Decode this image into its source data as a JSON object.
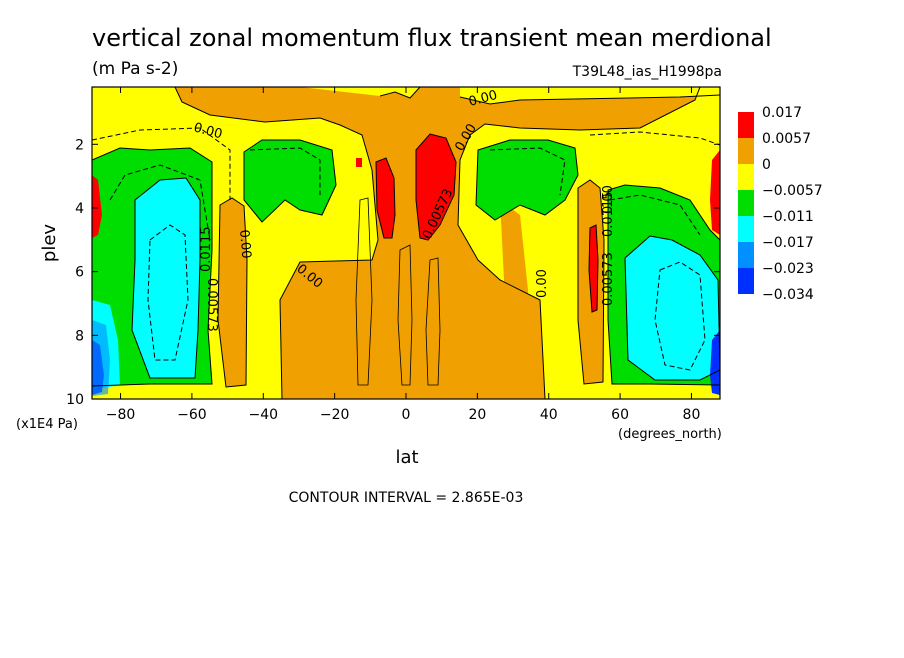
{
  "chart_data": {
    "type": "heatmap",
    "title": "vertical zonal momentum flux transient mean merdional",
    "units": "(m Pa s-2)",
    "dataset": "T39L48_ias_H1998pa",
    "xlabel": "lat",
    "xunits": "(degrees_north)",
    "ylabel": "plev",
    "yunits": "(x1E4 Pa)",
    "x_ticks": [
      "-80",
      "-60",
      "-40",
      "-20",
      "0",
      "20",
      "40",
      "60",
      "80"
    ],
    "y_ticks": [
      "2",
      "4",
      "6",
      "8",
      "10"
    ],
    "xlim": [
      -88,
      88
    ],
    "ylim": [
      10,
      0.2
    ],
    "contour_interval": "CONTOUR INTERVAL = 2.865E-03",
    "colorbar": {
      "labels": [
        "0.017",
        "0.0057",
        "0",
        "−0.0057",
        "−0.011",
        "−0.017",
        "−0.023",
        "−0.034"
      ],
      "colors": [
        "#ff0000",
        "#f0a000",
        "#ffff00",
        "#00dd00",
        "#00ffff",
        "#0090ff",
        "#0030ff"
      ]
    },
    "contour_labels": [
      "0.00",
      "0.00",
      "0.00",
      "0.00",
      "0.00",
      "0.00",
      "0.00",
      "0.00573",
      "0.0115",
      "0.00573",
      "0.00573",
      "0.0115"
    ],
    "regions": [
      {
        "level": "0.0057 to 0.017",
        "color": "#ff0000",
        "lat": [
          -8,
          -2
        ],
        "plev": [
          2.3,
          5.8
        ]
      },
      {
        "level": "0.0057 to 0.017",
        "color": "#ff0000",
        "lat": [
          4,
          14
        ],
        "plev": [
          1.8,
          5.2
        ]
      },
      {
        "level": "0.0057 to 0.017",
        "color": "#ff0000",
        "lat": [
          50,
          54
        ],
        "plev": [
          4.6,
          7.2
        ]
      },
      {
        "level": "-0.017 to -0.011",
        "color": "#00ffff",
        "lat": [
          -72,
          -60
        ],
        "plev": [
          4.3,
          9.3
        ]
      },
      {
        "level": "-0.017 to -0.011",
        "color": "#00ffff",
        "lat": [
          64,
          80
        ],
        "plev": [
          5.6,
          9.3
        ]
      },
      {
        "level": "-0.023 to -0.017",
        "color": "#0090ff",
        "lat": [
          -88,
          -82
        ],
        "plev": [
          8.2,
          10
        ]
      },
      {
        "level": "-0.023 to -0.017",
        "color": "#0090ff",
        "lat": [
          80,
          88
        ],
        "plev": [
          7.8,
          10
        ]
      }
    ]
  }
}
